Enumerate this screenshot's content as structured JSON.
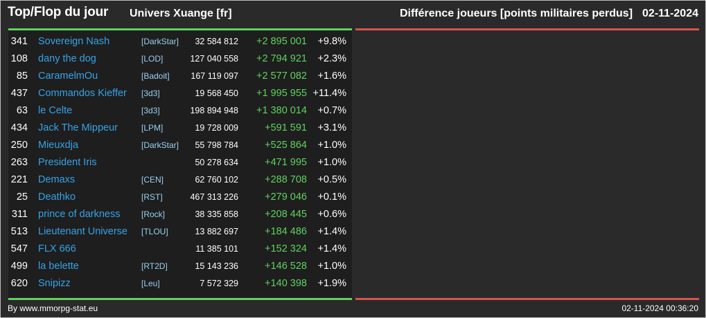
{
  "header": {
    "title": "Top/Flop du jour",
    "server": "Univers Xuange [fr]",
    "metric": "Différence joueurs [points militaires perdus]",
    "date": "02-11-2024"
  },
  "colors": {
    "top_accent": "#5fd35f",
    "flop_accent": "#d9534f",
    "name_link": "#35a3e8",
    "alliance_tag": "#9ad0f0",
    "positive_diff": "#5fd35f"
  },
  "top_rows": [
    {
      "rank": "341",
      "name": "Sovereign Nash",
      "alliance": "[DarkStar]",
      "total": "32 584 812",
      "diff": "+2 895 001",
      "pct": "+9.8%"
    },
    {
      "rank": "108",
      "name": "dany the dog",
      "alliance": "[LOD]",
      "total": "127 040 558",
      "diff": "+2 794 921",
      "pct": "+2.3%"
    },
    {
      "rank": "85",
      "name": "CaramelmOu",
      "alliance": "[Badoit]",
      "total": "167 119 097",
      "diff": "+2 577 082",
      "pct": "+1.6%"
    },
    {
      "rank": "437",
      "name": "Commandos Kieffer",
      "alliance": "[3d3]",
      "total": "19 568 450",
      "diff": "+1 995 955",
      "pct": "+11.4%"
    },
    {
      "rank": "63",
      "name": "le Celte",
      "alliance": "[3d3]",
      "total": "198 894 948",
      "diff": "+1 380 014",
      "pct": "+0.7%"
    },
    {
      "rank": "434",
      "name": "Jack The Mippeur",
      "alliance": "[LPM]",
      "total": "19 728 009",
      "diff": "+591 591",
      "pct": "+3.1%"
    },
    {
      "rank": "250",
      "name": "Mieuxdja",
      "alliance": "[DarkStar]",
      "total": "55 798 784",
      "diff": "+525 864",
      "pct": "+1.0%"
    },
    {
      "rank": "263",
      "name": "President Iris",
      "alliance": "",
      "total": "50 278 634",
      "diff": "+471 995",
      "pct": "+1.0%"
    },
    {
      "rank": "221",
      "name": "Demaxs",
      "alliance": "[CEN]",
      "total": "62 760 102",
      "diff": "+288 708",
      "pct": "+0.5%"
    },
    {
      "rank": "25",
      "name": "Deathko",
      "alliance": "[RST]",
      "total": "467 313 226",
      "diff": "+279 046",
      "pct": "+0.1%"
    },
    {
      "rank": "311",
      "name": "prince of darkness",
      "alliance": "[Rock]",
      "total": "38 335 858",
      "diff": "+208 445",
      "pct": "+0.6%"
    },
    {
      "rank": "513",
      "name": "Lieutenant Universe",
      "alliance": "[TLOU]",
      "total": "13 882 697",
      "diff": "+184 486",
      "pct": "+1.4%"
    },
    {
      "rank": "547",
      "name": "FLX 666",
      "alliance": "",
      "total": "11 385 101",
      "diff": "+152 324",
      "pct": "+1.4%"
    },
    {
      "rank": "499",
      "name": "la belette",
      "alliance": "[RT2D]",
      "total": "15 143 236",
      "diff": "+146 528",
      "pct": "+1.0%"
    },
    {
      "rank": "620",
      "name": "Snipizz",
      "alliance": "[Leu]",
      "total": "7 572 329",
      "diff": "+140 398",
      "pct": "+1.9%"
    }
  ],
  "footer": {
    "credit": "By www.mmorpg-stat.eu",
    "generated": "02-11-2024 00:36:20"
  }
}
